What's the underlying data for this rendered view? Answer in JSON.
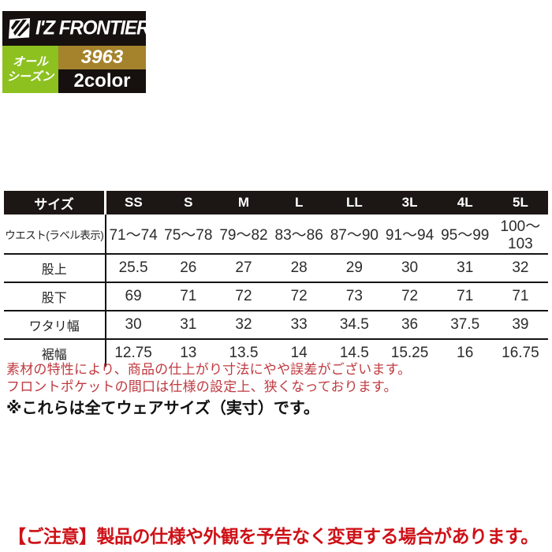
{
  "brand": {
    "logo_text": "I'Z FRONTIER",
    "logo_icon": "lightning-square-icon",
    "banner_bg": "#16110e"
  },
  "badges": {
    "season": {
      "line1": "オール",
      "line2": "シーズン",
      "color": "#8cc11f"
    },
    "product_code": {
      "label": "3963",
      "color": "#a5832c"
    },
    "color_count": {
      "label": "2color",
      "color": "#16110e"
    }
  },
  "size_table": {
    "header": [
      "サイズ",
      "SS",
      "S",
      "M",
      "L",
      "LL",
      "3L",
      "4L",
      "5L"
    ],
    "rows": [
      {
        "label": "ウエスト(ラベル表示)",
        "values": [
          "71〜74",
          "75〜78",
          "79〜82",
          "83〜86",
          "87〜90",
          "91〜94",
          "95〜99",
          "100〜103"
        ]
      },
      {
        "label": "股上",
        "values": [
          "25.5",
          "26",
          "27",
          "28",
          "29",
          "30",
          "31",
          "32"
        ]
      },
      {
        "label": "股下",
        "values": [
          "69",
          "71",
          "72",
          "72",
          "73",
          "72",
          "71",
          "71"
        ]
      },
      {
        "label": "ワタリ幅",
        "values": [
          "30",
          "31",
          "32",
          "33",
          "34.5",
          "36",
          "37.5",
          "39"
        ]
      },
      {
        "label": "裾幅",
        "values": [
          "12.75",
          "13",
          "13.5",
          "14",
          "14.5",
          "15.25",
          "16",
          "16.75"
        ]
      }
    ]
  },
  "chart_data": {
    "type": "table",
    "columns": [
      "サイズ",
      "SS",
      "S",
      "M",
      "L",
      "LL",
      "3L",
      "4L",
      "5L"
    ],
    "rows": [
      [
        "ウエスト(ラベル表示)",
        "71〜74",
        "75〜78",
        "79〜82",
        "83〜86",
        "87〜90",
        "91〜94",
        "95〜99",
        "100〜103"
      ],
      [
        "股上",
        25.5,
        26,
        27,
        28,
        29,
        30,
        31,
        32
      ],
      [
        "股下",
        69,
        71,
        72,
        72,
        73,
        72,
        71,
        71
      ],
      [
        "ワタリ幅",
        30,
        31,
        32,
        33,
        34.5,
        36,
        37.5,
        39
      ],
      [
        "裾幅",
        12.75,
        13,
        13.5,
        14,
        14.5,
        15.25,
        16,
        16.75
      ]
    ]
  },
  "notes": {
    "line1": "素材の特性により、商品の仕上がり寸法にやや誤差がございます。",
    "line2": "フロントポケットの間口は仕様の設定上、狭くなっております。",
    "line3": "※これらは全てウェアサイズ（実寸）です。",
    "note_color": "#bf3a40"
  },
  "caution": {
    "text": "【ご注意】製品の仕様や外観を予告なく変更する場合があります。",
    "color": "#ce1117"
  }
}
